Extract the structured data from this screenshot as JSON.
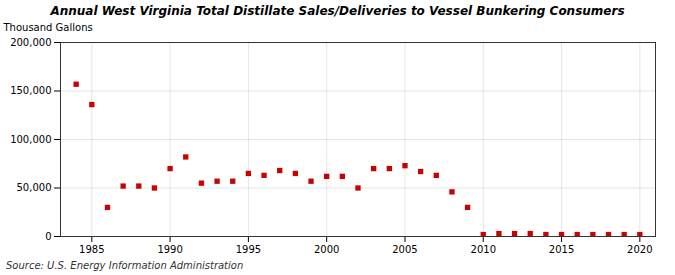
{
  "chart_data": {
    "type": "scatter",
    "title": "Annual West Virginia Total Distillate Sales/Deliveries to Vessel Bunkering Consumers",
    "ylabel": "Thousand Gallons",
    "source": "Source: U.S. Energy Information Administration",
    "x": [
      1984,
      1985,
      1986,
      1987,
      1988,
      1989,
      1990,
      1991,
      1992,
      1993,
      1994,
      1995,
      1996,
      1997,
      1998,
      1999,
      2000,
      2001,
      2002,
      2003,
      2004,
      2005,
      2006,
      2007,
      2008,
      2009,
      2010,
      2011,
      2012,
      2013,
      2014,
      2015,
      2016,
      2017,
      2018,
      2019,
      2020
    ],
    "values": [
      157000,
      136000,
      30000,
      52000,
      52000,
      50000,
      70000,
      82000,
      55000,
      57000,
      57000,
      65000,
      63000,
      68000,
      65000,
      57000,
      62000,
      62000,
      50000,
      70000,
      70000,
      73000,
      67000,
      63000,
      46000,
      30000,
      2000,
      3000,
      3000,
      3000,
      2000,
      2000,
      2000,
      2000,
      2000,
      2000,
      2000
    ],
    "color": "#cc0000",
    "marker": "square",
    "grid": true,
    "xlim": [
      1983,
      2021
    ],
    "xticks": [
      1985,
      1990,
      1995,
      2000,
      2005,
      2010,
      2015,
      2020
    ],
    "ylim": [
      0,
      200000
    ],
    "yticks": [
      0,
      {
        "value": 50000,
        "label": "50,000"
      },
      {
        "value": 100000,
        "label": "100,000"
      },
      {
        "value": 150000,
        "label": "150,000"
      },
      {
        "value": 200000,
        "label": "200,000"
      }
    ]
  }
}
